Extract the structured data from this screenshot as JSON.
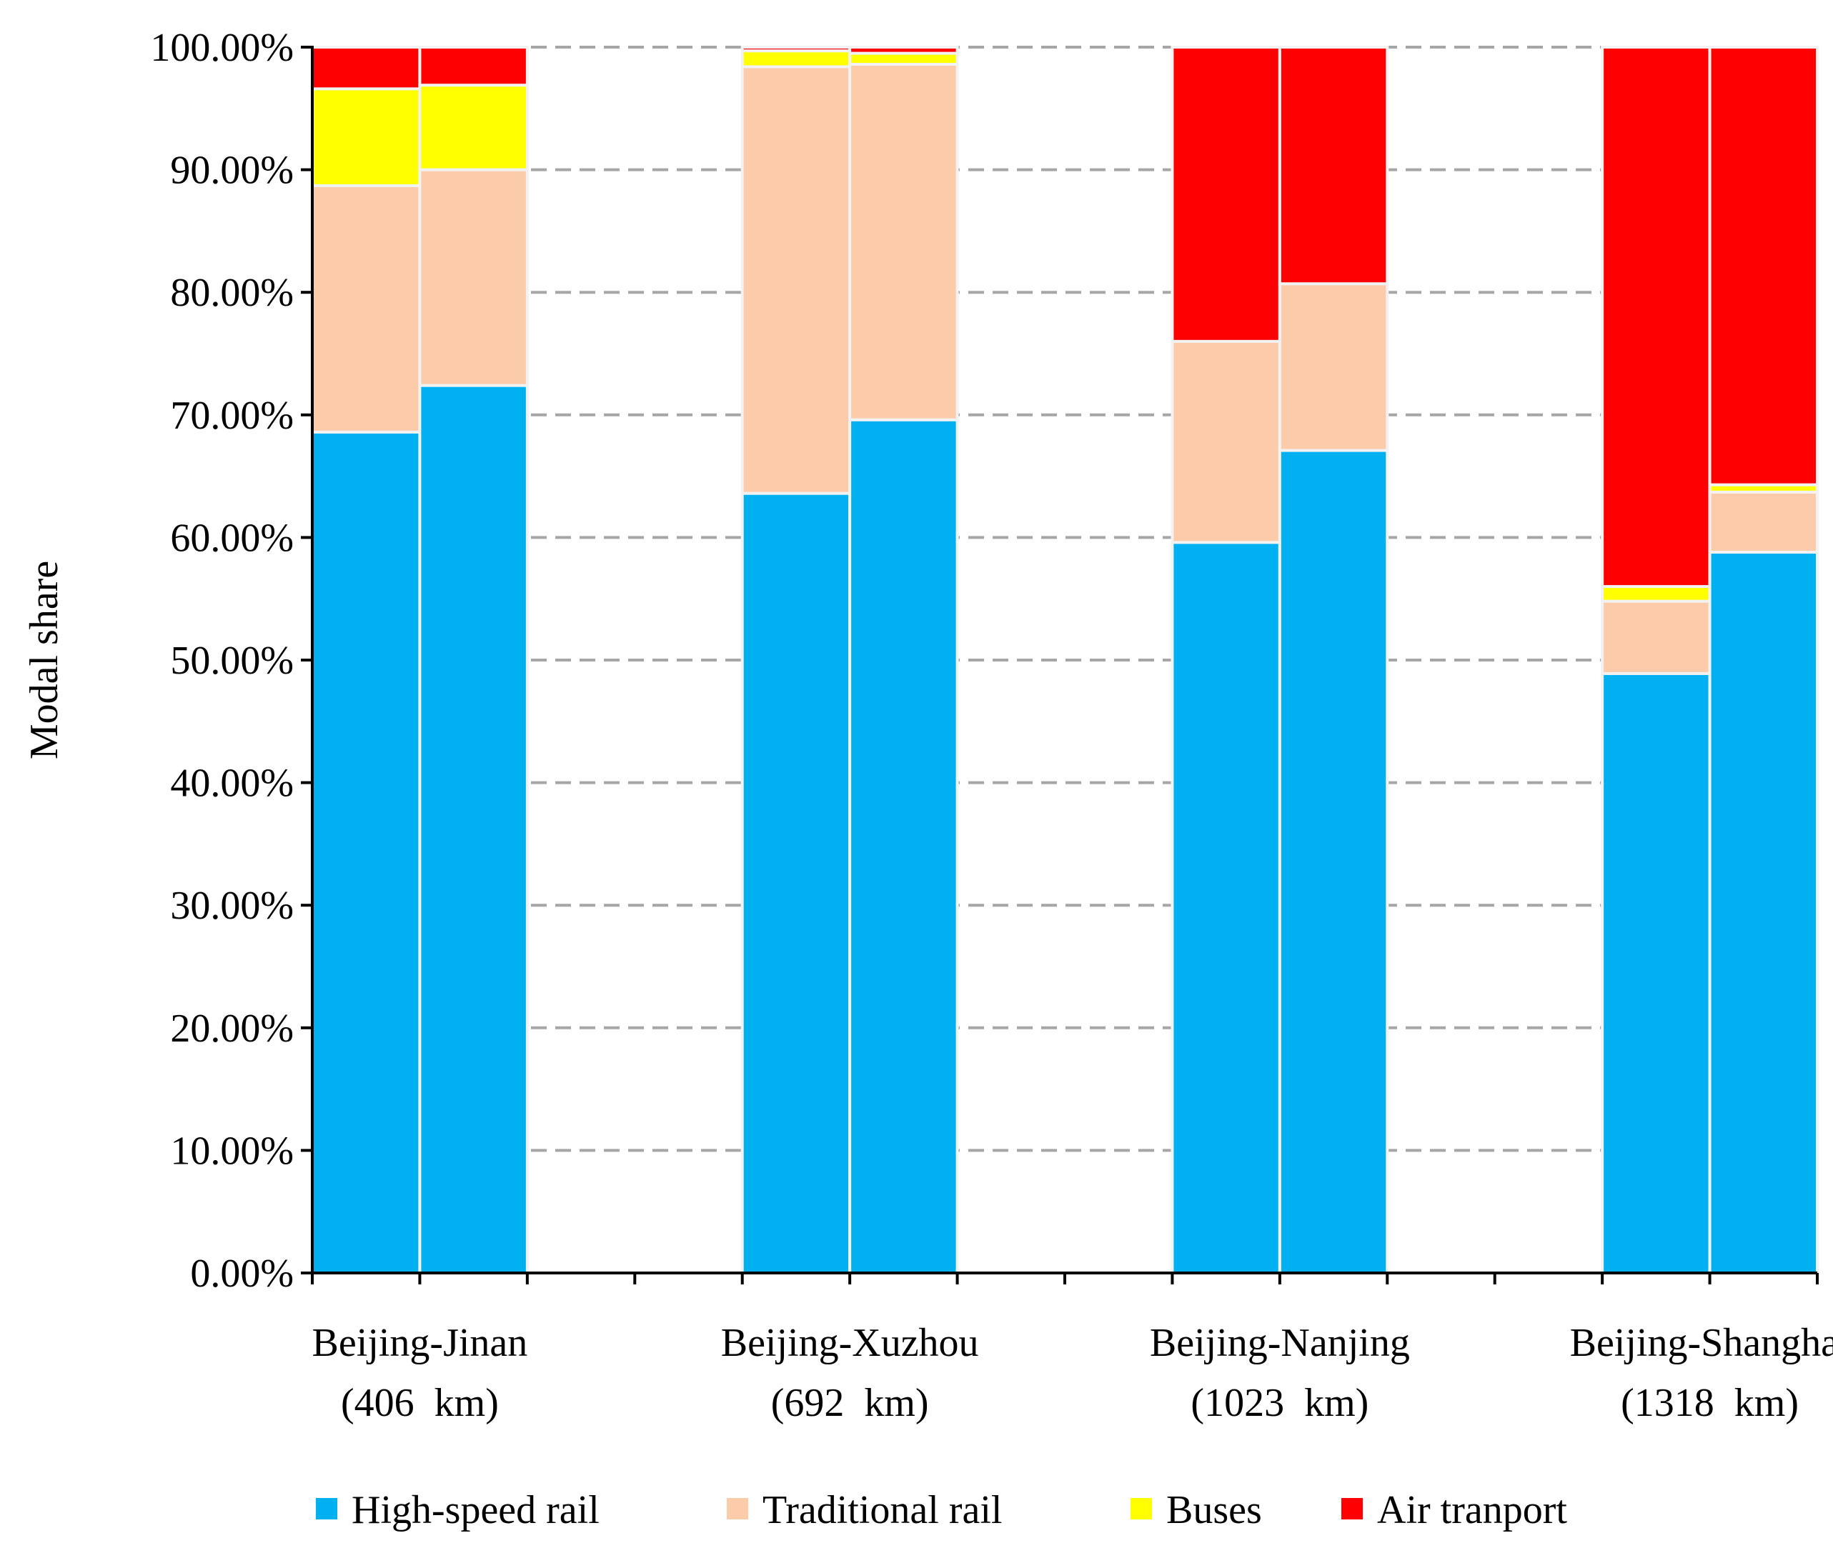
{
  "chart_data": {
    "type": "bar",
    "stacked": true,
    "ylabel": "Modal share",
    "ylim": [
      0,
      1
    ],
    "yticks": [
      "0.00%",
      "10.00%",
      "20.00%",
      "30.00%",
      "40.00%",
      "50.00%",
      "60.00%",
      "70.00%",
      "80.00%",
      "90.00%",
      "100.00%"
    ],
    "grid": true,
    "legend_position": "bottom",
    "groups": [
      {
        "line1": "Beijing-Jinan",
        "line2": "(406  km)"
      },
      {
        "line1": "Beijing-Xuzhou",
        "line2": "(692  km)"
      },
      {
        "line1": "Beijing-Nanjing",
        "line2": "(1023  km)"
      },
      {
        "line1": "Beijing-Shanghai",
        "line2": "(1318  km)"
      }
    ],
    "bars_per_group": 2,
    "series": [
      {
        "name": "High-speed rail",
        "color": "#00B0F0",
        "values": [
          [
            0.686,
            0.724
          ],
          [
            0.636,
            0.696
          ],
          [
            0.596,
            0.671
          ],
          [
            0.489,
            0.588
          ]
        ]
      },
      {
        "name": "Traditional rail",
        "color": "#FBCBAA",
        "values": [
          [
            0.201,
            0.176
          ],
          [
            0.348,
            0.29
          ],
          [
            0.164,
            0.136
          ],
          [
            0.059,
            0.049
          ]
        ]
      },
      {
        "name": "Buses",
        "color": "#FFFF00",
        "values": [
          [
            0.079,
            0.069
          ],
          [
            0.013,
            0.009
          ],
          [
            0.0,
            0.0
          ],
          [
            0.012,
            0.006
          ]
        ]
      },
      {
        "name": "Air tranport",
        "color": "#FF0000",
        "values": [
          [
            0.034,
            0.031
          ],
          [
            0.003,
            0.005
          ],
          [
            0.24,
            0.193
          ],
          [
            0.44,
            0.357
          ]
        ]
      }
    ]
  }
}
